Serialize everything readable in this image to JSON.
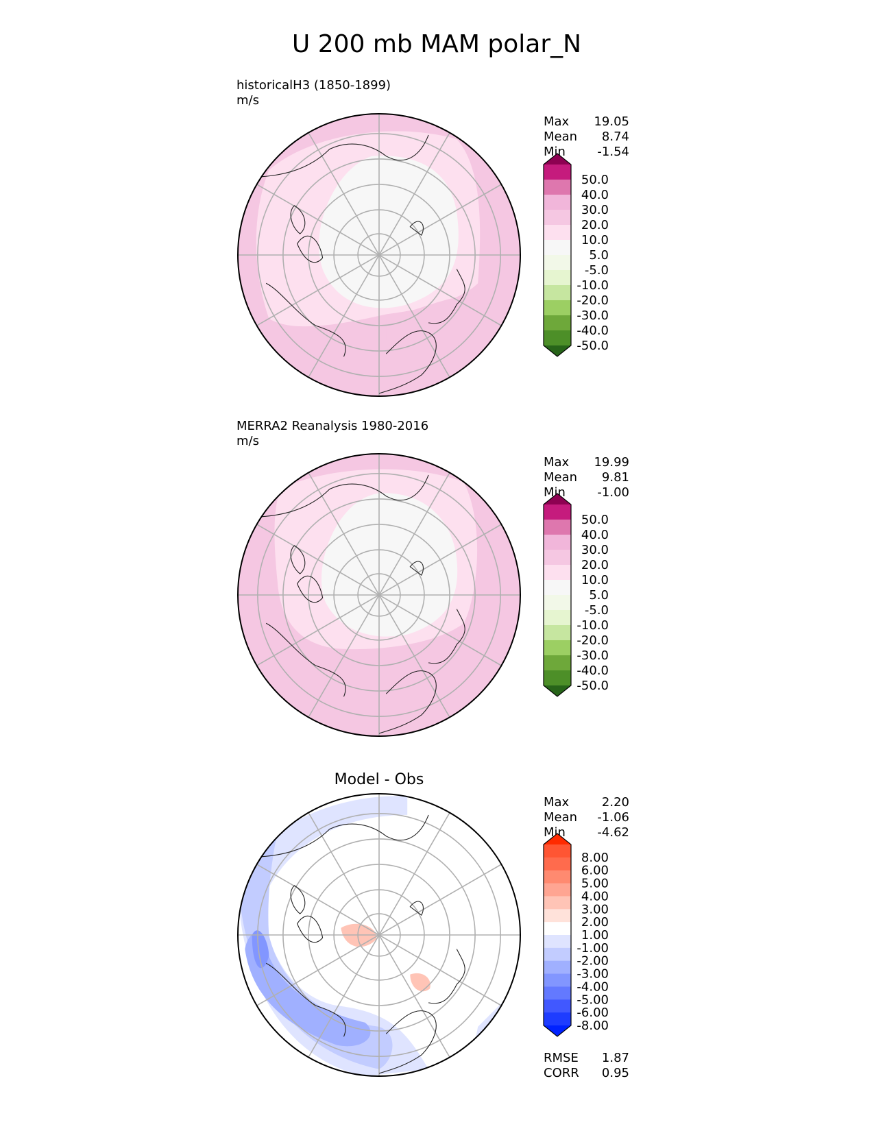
{
  "figure": {
    "title": "U 200 mb MAM polar_N"
  },
  "chart_data": [
    {
      "type": "heatmap",
      "projection": "north-polar-stereographic",
      "title": "historicalH3 (1850-1899)",
      "units": "m/s",
      "stats": [
        {
          "label": "Max",
          "value": "19.05"
        },
        {
          "label": "Mean",
          "value": "8.74"
        },
        {
          "label": "Min",
          "value": "-1.54"
        }
      ],
      "colorbar": {
        "ticks": [
          "50.0",
          "40.0",
          "30.0",
          "20.0",
          "10.0",
          "5.0",
          "-5.0",
          "-10.0",
          "-20.0",
          "-30.0",
          "-40.0",
          "-50.0"
        ],
        "colors": [
          "#8e0152",
          "#c51b7d",
          "#de77ae",
          "#f1b6da",
          "#f5c7e2",
          "#fde0ef",
          "#f7f7f7",
          "#f2f8e8",
          "#e6f5d0",
          "#c6e6a0",
          "#9ccf63",
          "#6ea83a",
          "#4d8f28",
          "#276419"
        ]
      },
      "regions": [
        {
          "value_band": "10-20",
          "area": "outer ring, Pacific and eastern Asia"
        },
        {
          "value_band": "5-10",
          "area": "mid-latitude band"
        },
        {
          "value_band": "-5-5",
          "area": "polar cap and Eurasian Arctic"
        }
      ]
    },
    {
      "type": "heatmap",
      "projection": "north-polar-stereographic",
      "title": "MERRA2 Reanalysis 1980-2016",
      "units": "m/s",
      "stats": [
        {
          "label": "Max",
          "value": "19.99"
        },
        {
          "label": "Mean",
          "value": "9.81"
        },
        {
          "label": "Min",
          "value": "-1.00"
        }
      ],
      "colorbar": {
        "ticks": [
          "50.0",
          "40.0",
          "30.0",
          "20.0",
          "10.0",
          "5.0",
          "-5.0",
          "-10.0",
          "-20.0",
          "-30.0",
          "-40.0",
          "-50.0"
        ],
        "colors": [
          "#8e0152",
          "#c51b7d",
          "#de77ae",
          "#f1b6da",
          "#f5c7e2",
          "#fde0ef",
          "#f7f7f7",
          "#f2f8e8",
          "#e6f5d0",
          "#c6e6a0",
          "#9ccf63",
          "#6ea83a",
          "#4d8f28",
          "#276419"
        ]
      },
      "regions": [
        {
          "value_band": "10-20",
          "area": "outer ring"
        },
        {
          "value_band": "5-10",
          "area": "mid-latitude band"
        },
        {
          "value_band": "-5-5",
          "area": "polar cap"
        }
      ]
    },
    {
      "type": "heatmap",
      "projection": "north-polar-stereographic",
      "title": "Model - Obs",
      "units": "",
      "stats": [
        {
          "label": "Max",
          "value": "2.20"
        },
        {
          "label": "Mean",
          "value": "-1.06"
        },
        {
          "label": "Min",
          "value": "-4.62"
        }
      ],
      "extra_stats": [
        {
          "label": "RMSE",
          "value": "1.87"
        },
        {
          "label": "CORR",
          "value": "0.95"
        }
      ],
      "colorbar": {
        "ticks": [
          "8.00",
          "6.00",
          "5.00",
          "4.00",
          "3.00",
          "2.00",
          "1.00",
          "-1.00",
          "-2.00",
          "-3.00",
          "-4.00",
          "-5.00",
          "-6.00",
          "-8.00"
        ],
        "colors": [
          "#ff2a00",
          "#ff5533",
          "#ff6b4d",
          "#ff8a70",
          "#ffa592",
          "#ffc4b6",
          "#ffe2da",
          "#ffffff",
          "#dfe4ff",
          "#c2ccff",
          "#a0b0ff",
          "#8296ff",
          "#6379ff",
          "#4158ff",
          "#1e3cff",
          "#0022ff"
        ]
      },
      "regions": [
        {
          "value_band": "-1-1",
          "area": "most of domain"
        },
        {
          "value_band": "-3--1",
          "area": "outer ring, Atlantic sector"
        },
        {
          "value_band": "-5--3",
          "area": "North Atlantic / western Europe"
        },
        {
          "value_band": "1-2",
          "area": "small patches over Canadian Arctic and Siberia"
        }
      ]
    }
  ]
}
